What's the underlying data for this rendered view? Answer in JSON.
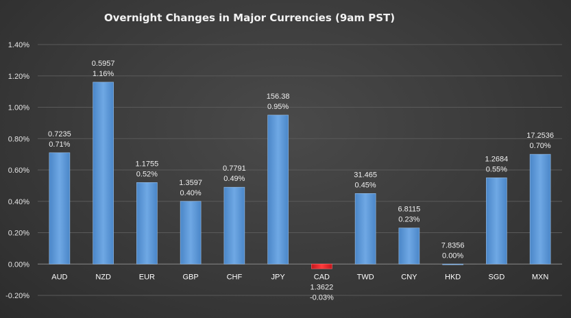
{
  "chart_data": {
    "type": "bar",
    "title": "Overnight Changes in Major Currencies (9am PST)",
    "categories": [
      "AUD",
      "NZD",
      "EUR",
      "GBP",
      "CHF",
      "JPY",
      "CAD",
      "TWD",
      "CNY",
      "HKD",
      "SGD",
      "MXN"
    ],
    "values": [
      0.71,
      1.16,
      0.52,
      0.4,
      0.49,
      0.95,
      -0.03,
      0.45,
      0.23,
      0.0,
      0.55,
      0.7
    ],
    "value_labels": [
      "0.71%",
      "1.16%",
      "0.52%",
      "0.40%",
      "0.49%",
      "0.95%",
      "-0.03%",
      "0.45%",
      "0.23%",
      "0.00%",
      "0.55%",
      "0.70%"
    ],
    "rates": [
      "0.7235",
      "0.5957",
      "1.1755",
      "1.3597",
      "0.7791",
      "156.38",
      "1.3622",
      "31.465",
      "6.8115",
      "7.8356",
      "1.2684",
      "17.2536"
    ],
    "y_ticks": [
      "1.40%",
      "1.20%",
      "1.00%",
      "0.80%",
      "0.60%",
      "0.40%",
      "0.20%",
      "0.00%",
      "-0.20%"
    ],
    "y_tick_values": [
      1.4,
      1.2,
      1.0,
      0.8,
      0.6,
      0.4,
      0.2,
      0.0,
      -0.2
    ],
    "ylim": [
      -0.2,
      1.4
    ],
    "grid": true,
    "legend": "none",
    "xlabel": "",
    "ylabel": "",
    "colors": {
      "positive": "#5b9bd5",
      "negative": "#e8232a",
      "background": "#3f3f3f"
    }
  }
}
